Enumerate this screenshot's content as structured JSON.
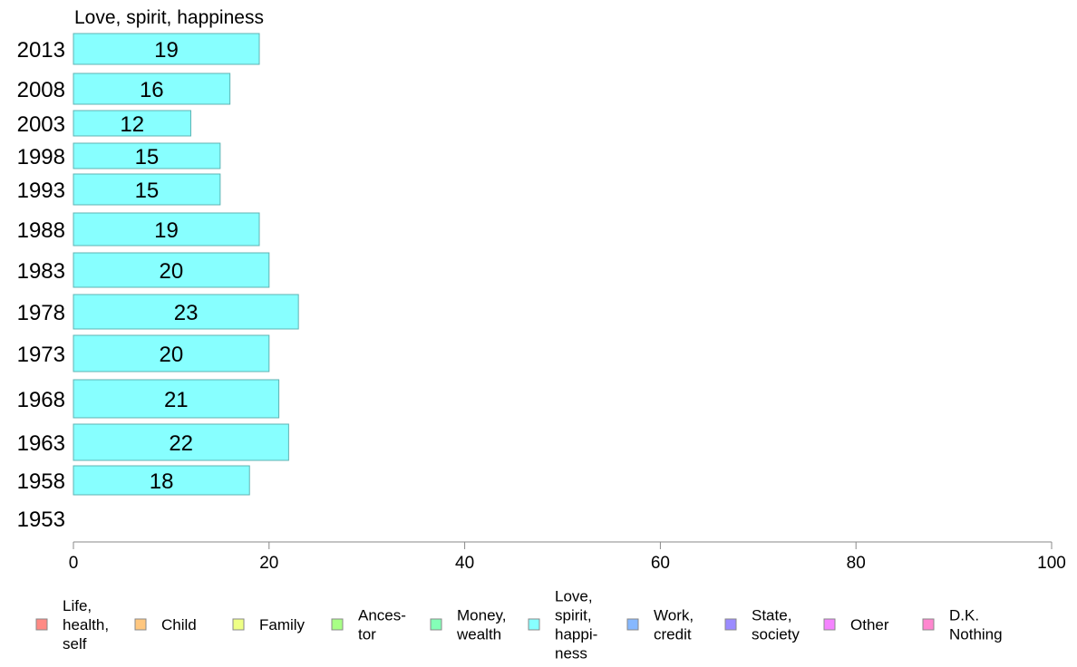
{
  "chart_data": {
    "type": "bar",
    "orientation": "horizontal",
    "title": "Love, spirit, happiness",
    "categories": [
      "2013",
      "2008",
      "2003",
      "1998",
      "1993",
      "1988",
      "1983",
      "1978",
      "1973",
      "1968",
      "1963",
      "1958",
      "1953"
    ],
    "values": [
      19,
      16,
      12,
      15,
      15,
      19,
      20,
      23,
      20,
      21,
      22,
      18,
      null
    ],
    "bar_color": "#87ffff",
    "bar_border": "#5fb3b3",
    "xlim": [
      0,
      100
    ],
    "x_ticks": [
      0,
      20,
      40,
      60,
      80,
      100
    ],
    "grid": false,
    "legend": {
      "placement": "bottom",
      "items": [
        {
          "lines": [
            "Life,",
            "health,",
            "self"
          ],
          "color": "#ff8a84"
        },
        {
          "lines": [
            "Child"
          ],
          "color": "#ffc77f"
        },
        {
          "lines": [
            "Family"
          ],
          "color": "#eeff85"
        },
        {
          "lines": [
            "Ances-",
            "tor"
          ],
          "color": "#a8ff85"
        },
        {
          "lines": [
            "Money,",
            "wealth"
          ],
          "color": "#84ffb7"
        },
        {
          "lines": [
            "Love,",
            "spirit,",
            "happi-",
            "ness"
          ],
          "color": "#87ffff"
        },
        {
          "lines": [
            "Work,",
            "credit"
          ],
          "color": "#86b8ff"
        },
        {
          "lines": [
            "State,",
            "society"
          ],
          "color": "#9b8bff"
        },
        {
          "lines": [
            "Other"
          ],
          "color": "#f583ff"
        },
        {
          "lines": [
            "D.K.",
            "Nothing"
          ],
          "color": "#ff86cf"
        }
      ]
    }
  }
}
